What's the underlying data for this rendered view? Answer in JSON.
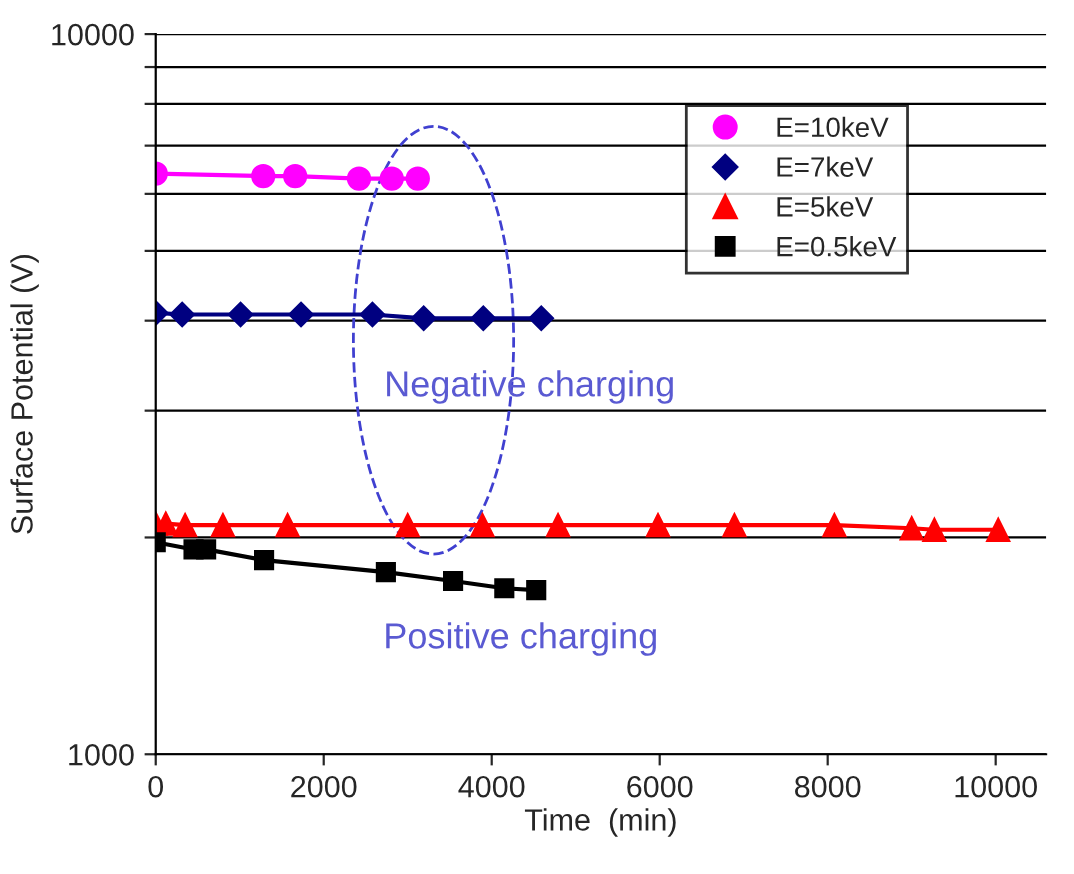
{
  "chart_data": {
    "type": "line",
    "xlabel": "Time  (min)",
    "ylabel": "Surface Potential (V)",
    "log": "y",
    "xlim": [
      0,
      10600
    ],
    "xticks": [
      0,
      2000,
      4000,
      6000,
      8000,
      10000
    ],
    "ylim": [
      1000,
      10000
    ],
    "yticks": [
      1000,
      {
        "value": 2000,
        "label": null
      },
      {
        "value": 3000,
        "label": null
      },
      {
        "value": 4000,
        "label": null
      },
      {
        "value": 5000,
        "label": null
      },
      {
        "value": 6000,
        "label": null
      },
      {
        "value": 7000,
        "label": null
      },
      {
        "value": 8000,
        "label": null
      },
      {
        "value": 9000,
        "label": null
      },
      10000
    ],
    "grid": "y",
    "legend": "top right",
    "line_style": "solid",
    "annotations": [
      "Negative charging",
      "Positive charging"
    ],
    "series": [
      {
        "name": "E=10keV",
        "color": "#ff00ff",
        "marker": "circle",
        "x": [
          0,
          1280,
          1660,
          2420,
          2810,
          3120
        ],
        "values": [
          6400,
          6350,
          6350,
          6300,
          6300,
          6300
        ]
      },
      {
        "name": "E=7keV",
        "color": "#000080",
        "marker": "diamond",
        "x": [
          0,
          315,
          1010,
          1730,
          2580,
          3190,
          3900,
          4590
        ],
        "values": [
          4100,
          4080,
          4080,
          4080,
          4080,
          4030,
          4030,
          4030
        ]
      },
      {
        "name": "E=5keV",
        "color": "#ff0000",
        "marker": "triangle",
        "x": [
          0,
          120,
          350,
          800,
          1570,
          3000,
          3890,
          4790,
          5980,
          6890,
          8080,
          9000,
          9270,
          10030
        ],
        "values": [
          2090,
          2090,
          2080,
          2080,
          2080,
          2080,
          2080,
          2080,
          2080,
          2080,
          2080,
          2060,
          2050,
          2050
        ]
      },
      {
        "name": "E=0.5keV",
        "color": "#000000",
        "marker": "square",
        "x": [
          0,
          450,
          600,
          1290,
          2740,
          3540,
          4150,
          4530
        ],
        "values": [
          1970,
          1925,
          1925,
          1860,
          1790,
          1740,
          1700,
          1690
        ]
      }
    ]
  }
}
